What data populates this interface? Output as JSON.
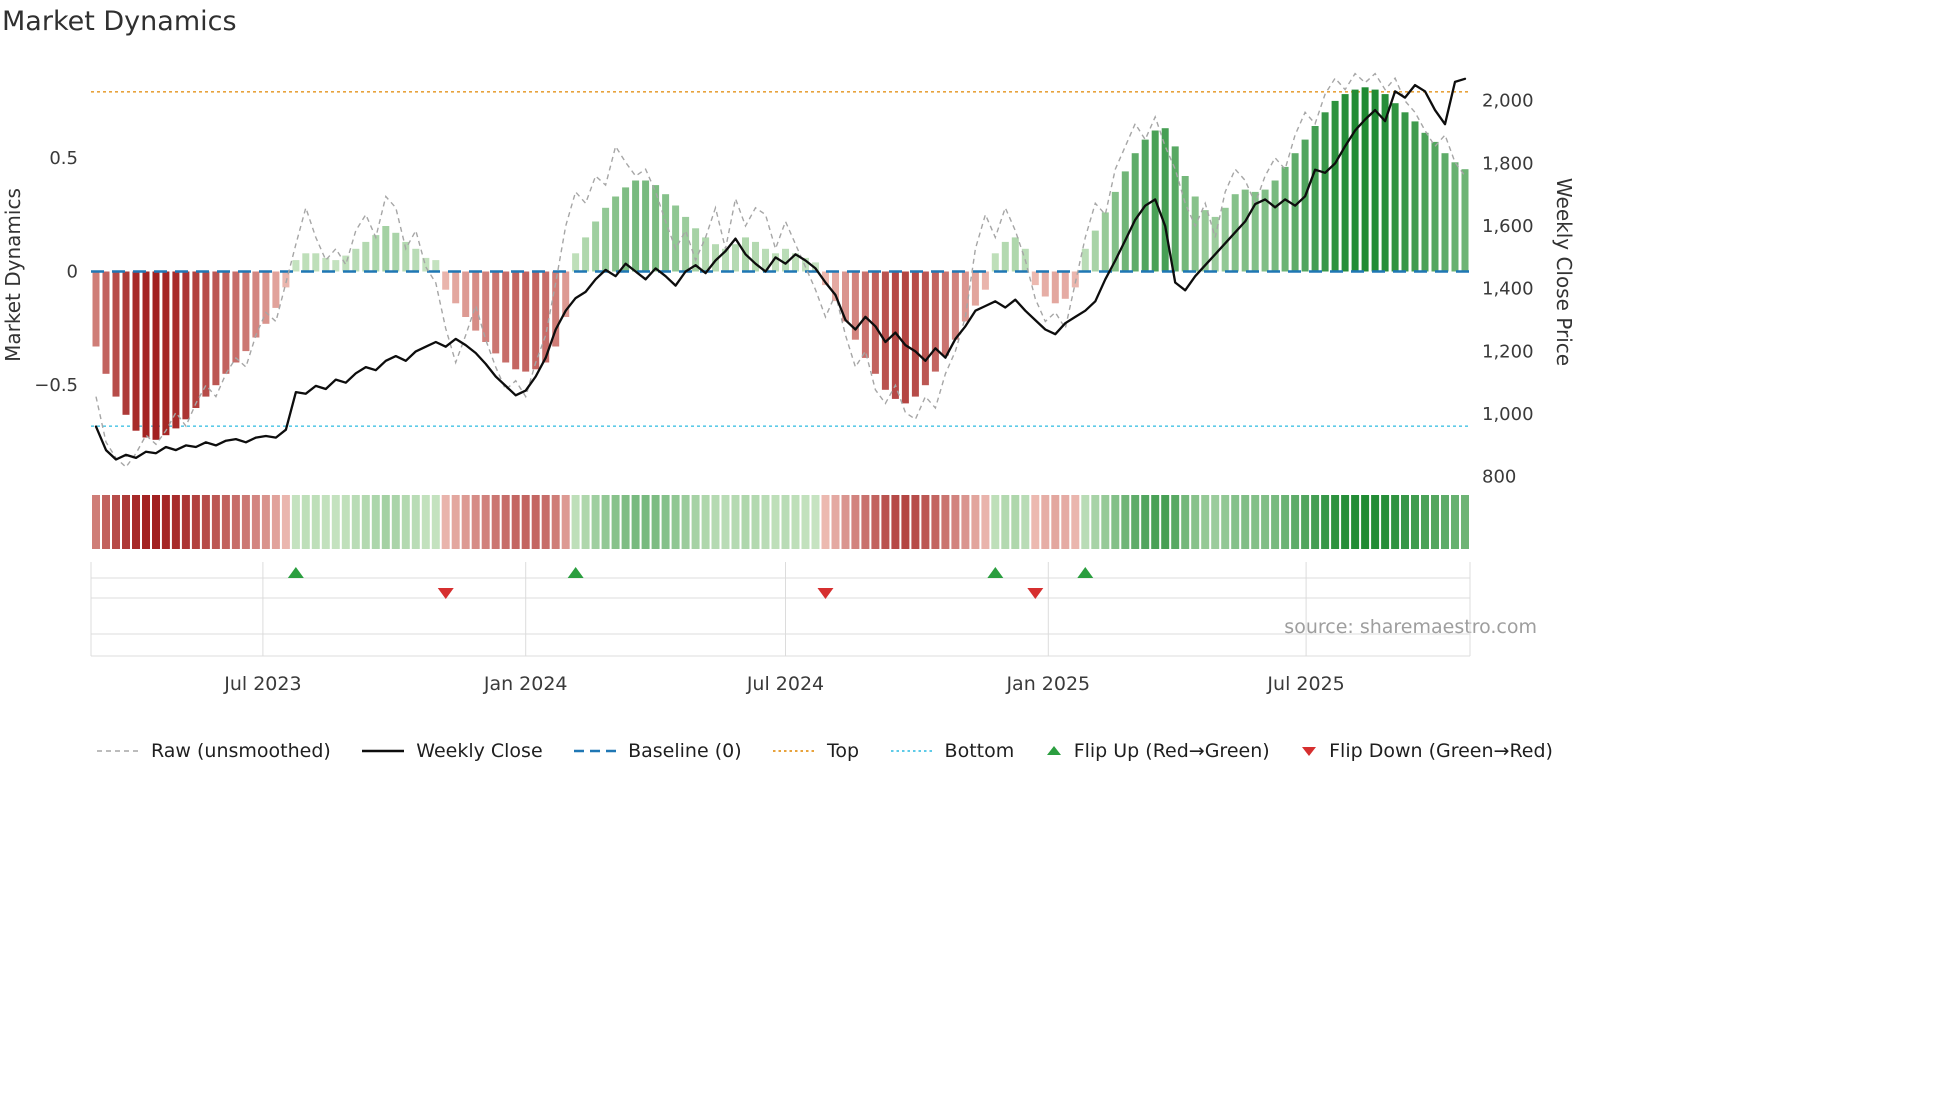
{
  "title": "Market Dynamics",
  "source_text": "source: sharemaestro.com",
  "axes": {
    "left_label": "Market Dynamics",
    "right_label": "Weekly Close Price",
    "left_ticks": [
      {
        "v": 0.5,
        "label": "0.5"
      },
      {
        "v": 0.0,
        "label": "0"
      },
      {
        "v": -0.5,
        "label": "−0.5"
      }
    ],
    "right_ticks": [
      {
        "v": 2000,
        "label": "2,000"
      },
      {
        "v": 1800,
        "label": "1,800"
      },
      {
        "v": 1600,
        "label": "1,600"
      },
      {
        "v": 1400,
        "label": "1,400"
      },
      {
        "v": 1200,
        "label": "1,200"
      },
      {
        "v": 1000,
        "label": "1,000"
      },
      {
        "v": 800,
        "label": "800"
      }
    ]
  },
  "legend": [
    {
      "key": "raw",
      "label": "Raw (unsmoothed)"
    },
    {
      "key": "close",
      "label": "Weekly Close"
    },
    {
      "key": "baseline",
      "label": "Baseline (0)"
    },
    {
      "key": "top",
      "label": "Top"
    },
    {
      "key": "bottom",
      "label": "Bottom"
    },
    {
      "key": "flip_up",
      "label": "Flip Up (Red→Green)"
    },
    {
      "key": "flip_down",
      "label": "Flip Down (Green→Red)"
    }
  ],
  "colors": {
    "raw_line": "#a6a6a6",
    "close_line": "#0d0d0d",
    "baseline_line": "#1f77b4",
    "top_line": "#e8a33d",
    "bottom_line": "#5ecbe8",
    "flip_up": "#2b9e3f",
    "flip_down": "#d62f2f",
    "neg_weak": "#f2c6bd",
    "neg_strong": "#9c1414",
    "pos_weak": "#cfe8c8",
    "pos_strong": "#17862c",
    "grid": "#dcdcdc"
  },
  "chart_data": {
    "type": "bar+line+heatmap+markers",
    "title": "Market Dynamics",
    "x_unit": "week",
    "n_weeks": 138,
    "left_ylim": [
      -0.93,
      0.93
    ],
    "right_ylim": [
      780,
      2130
    ],
    "baseline": 0,
    "top_level": 0.79,
    "bottom_level": -0.68,
    "grid_main": false,
    "legend_position": "bottom",
    "x_ticks": [
      {
        "week": 16.7,
        "label": "Jul 2023"
      },
      {
        "week": 43.0,
        "label": "Jan 2024"
      },
      {
        "week": 69.0,
        "label": "Jul 2024"
      },
      {
        "week": 95.3,
        "label": "Jan 2025"
      },
      {
        "week": 121.1,
        "label": "Jul 2025"
      }
    ],
    "flip_up_weeks": [
      20,
      48,
      90,
      99
    ],
    "flip_down_weeks": [
      35,
      73,
      94
    ],
    "heatmap_source": "oscillator",
    "oscillator": [
      -0.33,
      -0.45,
      -0.55,
      -0.63,
      -0.7,
      -0.73,
      -0.74,
      -0.72,
      -0.69,
      -0.65,
      -0.6,
      -0.55,
      -0.5,
      -0.45,
      -0.4,
      -0.35,
      -0.29,
      -0.23,
      -0.16,
      -0.07,
      0.05,
      0.08,
      0.08,
      0.06,
      0.05,
      0.07,
      0.1,
      0.13,
      0.16,
      0.2,
      0.17,
      0.13,
      0.1,
      0.06,
      0.05,
      -0.08,
      -0.14,
      -0.2,
      -0.26,
      -0.31,
      -0.36,
      -0.4,
      -0.43,
      -0.44,
      -0.43,
      -0.4,
      -0.33,
      -0.2,
      0.08,
      0.15,
      0.22,
      0.28,
      0.33,
      0.37,
      0.4,
      0.4,
      0.38,
      0.34,
      0.29,
      0.24,
      0.19,
      0.15,
      0.12,
      0.1,
      0.12,
      0.15,
      0.13,
      0.1,
      0.08,
      0.1,
      0.08,
      0.06,
      0.04,
      -0.06,
      -0.13,
      -0.22,
      -0.3,
      -0.38,
      -0.45,
      -0.52,
      -0.56,
      -0.58,
      -0.55,
      -0.5,
      -0.44,
      -0.37,
      -0.3,
      -0.22,
      -0.15,
      -0.08,
      0.08,
      0.13,
      0.15,
      0.1,
      -0.06,
      -0.11,
      -0.14,
      -0.12,
      -0.07,
      0.1,
      0.18,
      0.26,
      0.35,
      0.44,
      0.52,
      0.58,
      0.62,
      0.63,
      0.55,
      0.42,
      0.33,
      0.27,
      0.24,
      0.28,
      0.34,
      0.36,
      0.35,
      0.36,
      0.4,
      0.46,
      0.52,
      0.58,
      0.64,
      0.7,
      0.75,
      0.78,
      0.8,
      0.81,
      0.8,
      0.78,
      0.74,
      0.7,
      0.66,
      0.61,
      0.57,
      0.52,
      0.48,
      0.45
    ],
    "raw": [
      -0.55,
      -0.75,
      -0.82,
      -0.86,
      -0.8,
      -0.72,
      -0.76,
      -0.7,
      -0.62,
      -0.68,
      -0.58,
      -0.5,
      -0.55,
      -0.45,
      -0.38,
      -0.42,
      -0.28,
      -0.18,
      -0.22,
      -0.05,
      0.12,
      0.28,
      0.15,
      0.05,
      0.1,
      0.03,
      0.18,
      0.25,
      0.15,
      0.33,
      0.28,
      0.1,
      0.18,
      0.02,
      -0.05,
      -0.25,
      -0.4,
      -0.28,
      -0.15,
      -0.3,
      -0.42,
      -0.52,
      -0.48,
      -0.55,
      -0.4,
      -0.28,
      -0.05,
      0.2,
      0.35,
      0.3,
      0.42,
      0.38,
      0.55,
      0.48,
      0.42,
      0.45,
      0.35,
      0.22,
      0.1,
      0.18,
      0.05,
      0.15,
      0.28,
      0.1,
      0.32,
      0.2,
      0.28,
      0.25,
      0.1,
      0.22,
      0.12,
      0.02,
      -0.08,
      -0.2,
      -0.1,
      -0.28,
      -0.42,
      -0.35,
      -0.52,
      -0.58,
      -0.5,
      -0.62,
      -0.65,
      -0.55,
      -0.6,
      -0.45,
      -0.35,
      -0.2,
      0.1,
      0.25,
      0.15,
      0.28,
      0.18,
      0.05,
      -0.12,
      -0.22,
      -0.18,
      -0.25,
      -0.05,
      0.15,
      0.3,
      0.25,
      0.45,
      0.55,
      0.65,
      0.58,
      0.68,
      0.55,
      0.45,
      0.3,
      0.2,
      0.3,
      0.15,
      0.35,
      0.45,
      0.4,
      0.3,
      0.42,
      0.5,
      0.45,
      0.6,
      0.7,
      0.65,
      0.78,
      0.85,
      0.8,
      0.87,
      0.83,
      0.87,
      0.8,
      0.85,
      0.75,
      0.7,
      0.62,
      0.55,
      0.6,
      0.48,
      0.42
    ],
    "weekly_close": [
      960,
      885,
      855,
      870,
      860,
      880,
      875,
      895,
      885,
      900,
      895,
      910,
      900,
      915,
      920,
      910,
      925,
      930,
      925,
      950,
      1070,
      1065,
      1090,
      1080,
      1110,
      1100,
      1130,
      1150,
      1140,
      1170,
      1185,
      1170,
      1200,
      1215,
      1230,
      1215,
      1240,
      1220,
      1195,
      1160,
      1120,
      1090,
      1060,
      1075,
      1120,
      1180,
      1270,
      1330,
      1370,
      1390,
      1430,
      1460,
      1440,
      1480,
      1455,
      1430,
      1465,
      1440,
      1410,
      1455,
      1475,
      1450,
      1490,
      1520,
      1560,
      1510,
      1480,
      1455,
      1500,
      1480,
      1510,
      1490,
      1465,
      1420,
      1380,
      1300,
      1270,
      1310,
      1280,
      1230,
      1260,
      1220,
      1200,
      1170,
      1210,
      1180,
      1240,
      1280,
      1330,
      1345,
      1360,
      1340,
      1365,
      1330,
      1300,
      1270,
      1255,
      1290,
      1310,
      1330,
      1360,
      1430,
      1490,
      1555,
      1620,
      1665,
      1685,
      1600,
      1420,
      1395,
      1440,
      1475,
      1510,
      1545,
      1580,
      1615,
      1670,
      1685,
      1660,
      1685,
      1665,
      1695,
      1780,
      1770,
      1800,
      1855,
      1905,
      1940,
      1970,
      1935,
      2030,
      2010,
      2050,
      2030,
      1970,
      1925,
      2060,
      2070
    ]
  }
}
